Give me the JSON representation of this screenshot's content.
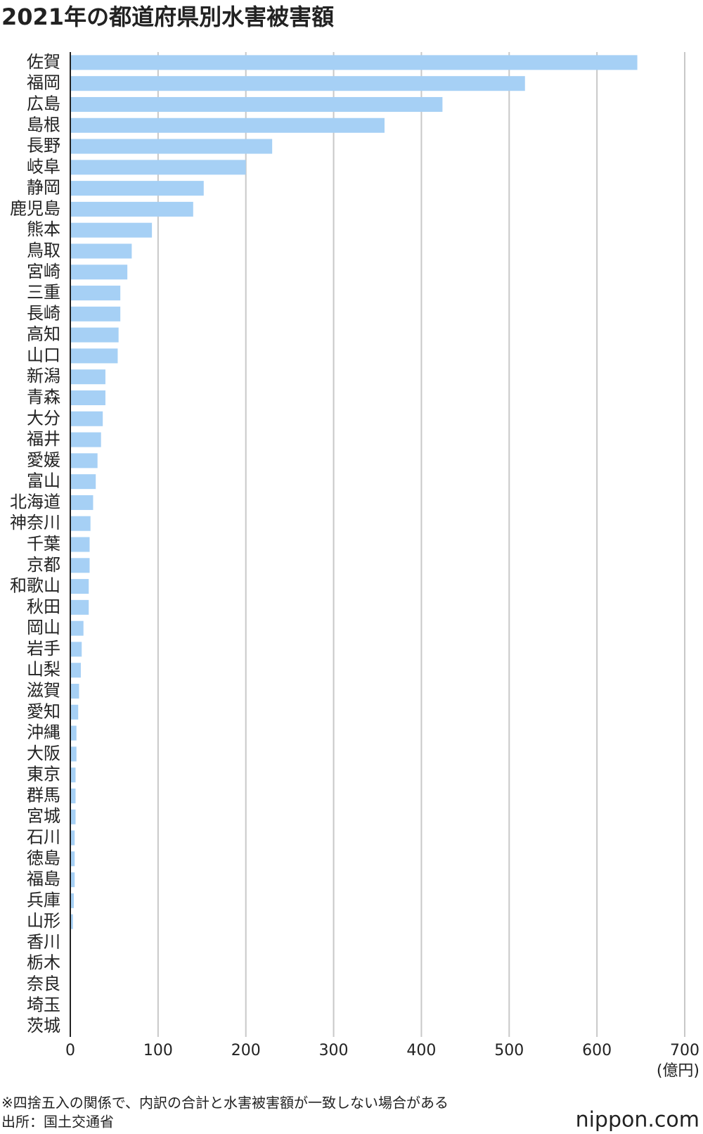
{
  "chart_data": {
    "type": "bar",
    "orientation": "horizontal",
    "title": "2021年の都道府県別水害被害額",
    "unit": "(億円)",
    "note": "※四捨五入の関係で、内訳の合計と水害被害額が一致しない場合がある",
    "source": "出所：国土交通省",
    "logo": "nippon.com",
    "categories": [
      "佐賀",
      "福岡",
      "広島",
      "島根",
      "長野",
      "岐阜",
      "静岡",
      "鹿児島",
      "熊本",
      "鳥取",
      "宮崎",
      "三重",
      "長崎",
      "高知",
      "山口",
      "新潟",
      "青森",
      "大分",
      "福井",
      "愛媛",
      "富山",
      "北海道",
      "神奈川",
      "千葉",
      "京都",
      "和歌山",
      "秋田",
      "岡山",
      "岩手",
      "山梨",
      "滋賀",
      "愛知",
      "沖縄",
      "大阪",
      "東京",
      "群馬",
      "宮城",
      "石川",
      "徳島",
      "福島",
      "兵庫",
      "山形",
      "香川",
      "栃木",
      "奈良",
      "埼玉",
      "茨城"
    ],
    "values": [
      646,
      518,
      424,
      358,
      230,
      200,
      152,
      140,
      93,
      70,
      65,
      57,
      57,
      55,
      54,
      40,
      40,
      37,
      35,
      31,
      29,
      26,
      23,
      22,
      22,
      21,
      21,
      15,
      13,
      12,
      10,
      9,
      7,
      7,
      6,
      6,
      6,
      5,
      5,
      5,
      4,
      3,
      0.5,
      0.3,
      0.2,
      0.1,
      0.1
    ],
    "color": "#a6d0f5",
    "xlim": [
      0,
      700
    ],
    "xticks": [
      0,
      100,
      200,
      300,
      400,
      500,
      600,
      700
    ],
    "grid": true
  }
}
